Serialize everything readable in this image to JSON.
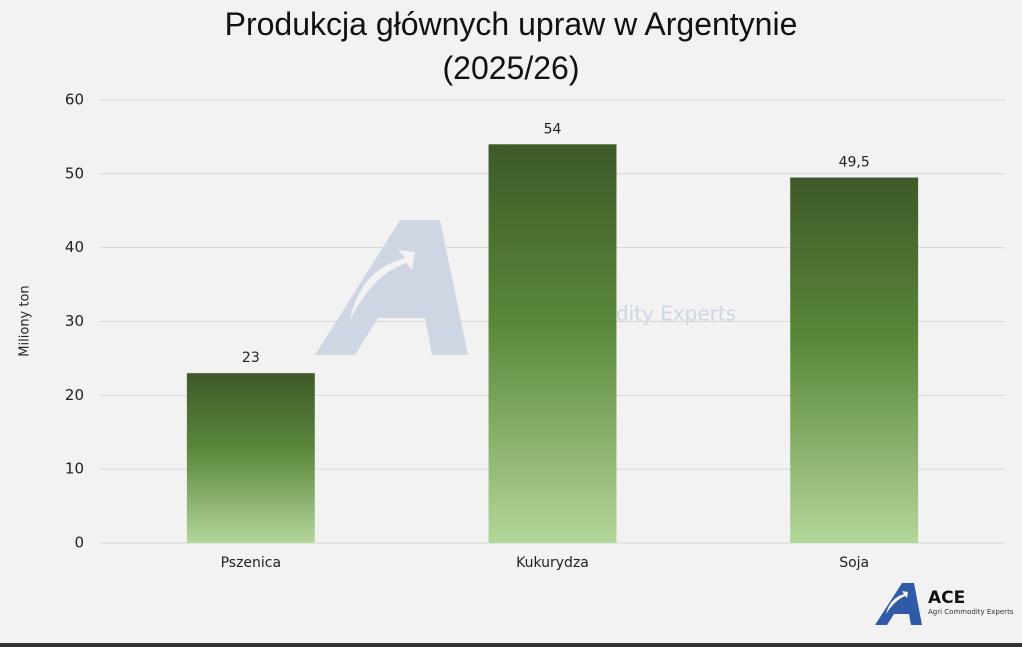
{
  "chart_data": {
    "type": "bar",
    "title": "Produkcja głównych upraw w Argentynie (2025/26)",
    "y_label": "Miliony ton",
    "categories": [
      "Pszenica",
      "Kukurydza",
      "Soja"
    ],
    "values": [
      23,
      54,
      49.5
    ],
    "value_labels": [
      "23",
      "54",
      "49,5"
    ],
    "gradient": [
      "#3d5928",
      "#5a883a",
      "#b3d699"
    ],
    "ylim": [
      0,
      60
    ],
    "yticks": [
      0,
      10,
      20,
      30,
      40,
      50,
      60
    ],
    "grid": true
  },
  "logo": {
    "name": "ACE",
    "tagline": "Agri Commodity Experts"
  }
}
